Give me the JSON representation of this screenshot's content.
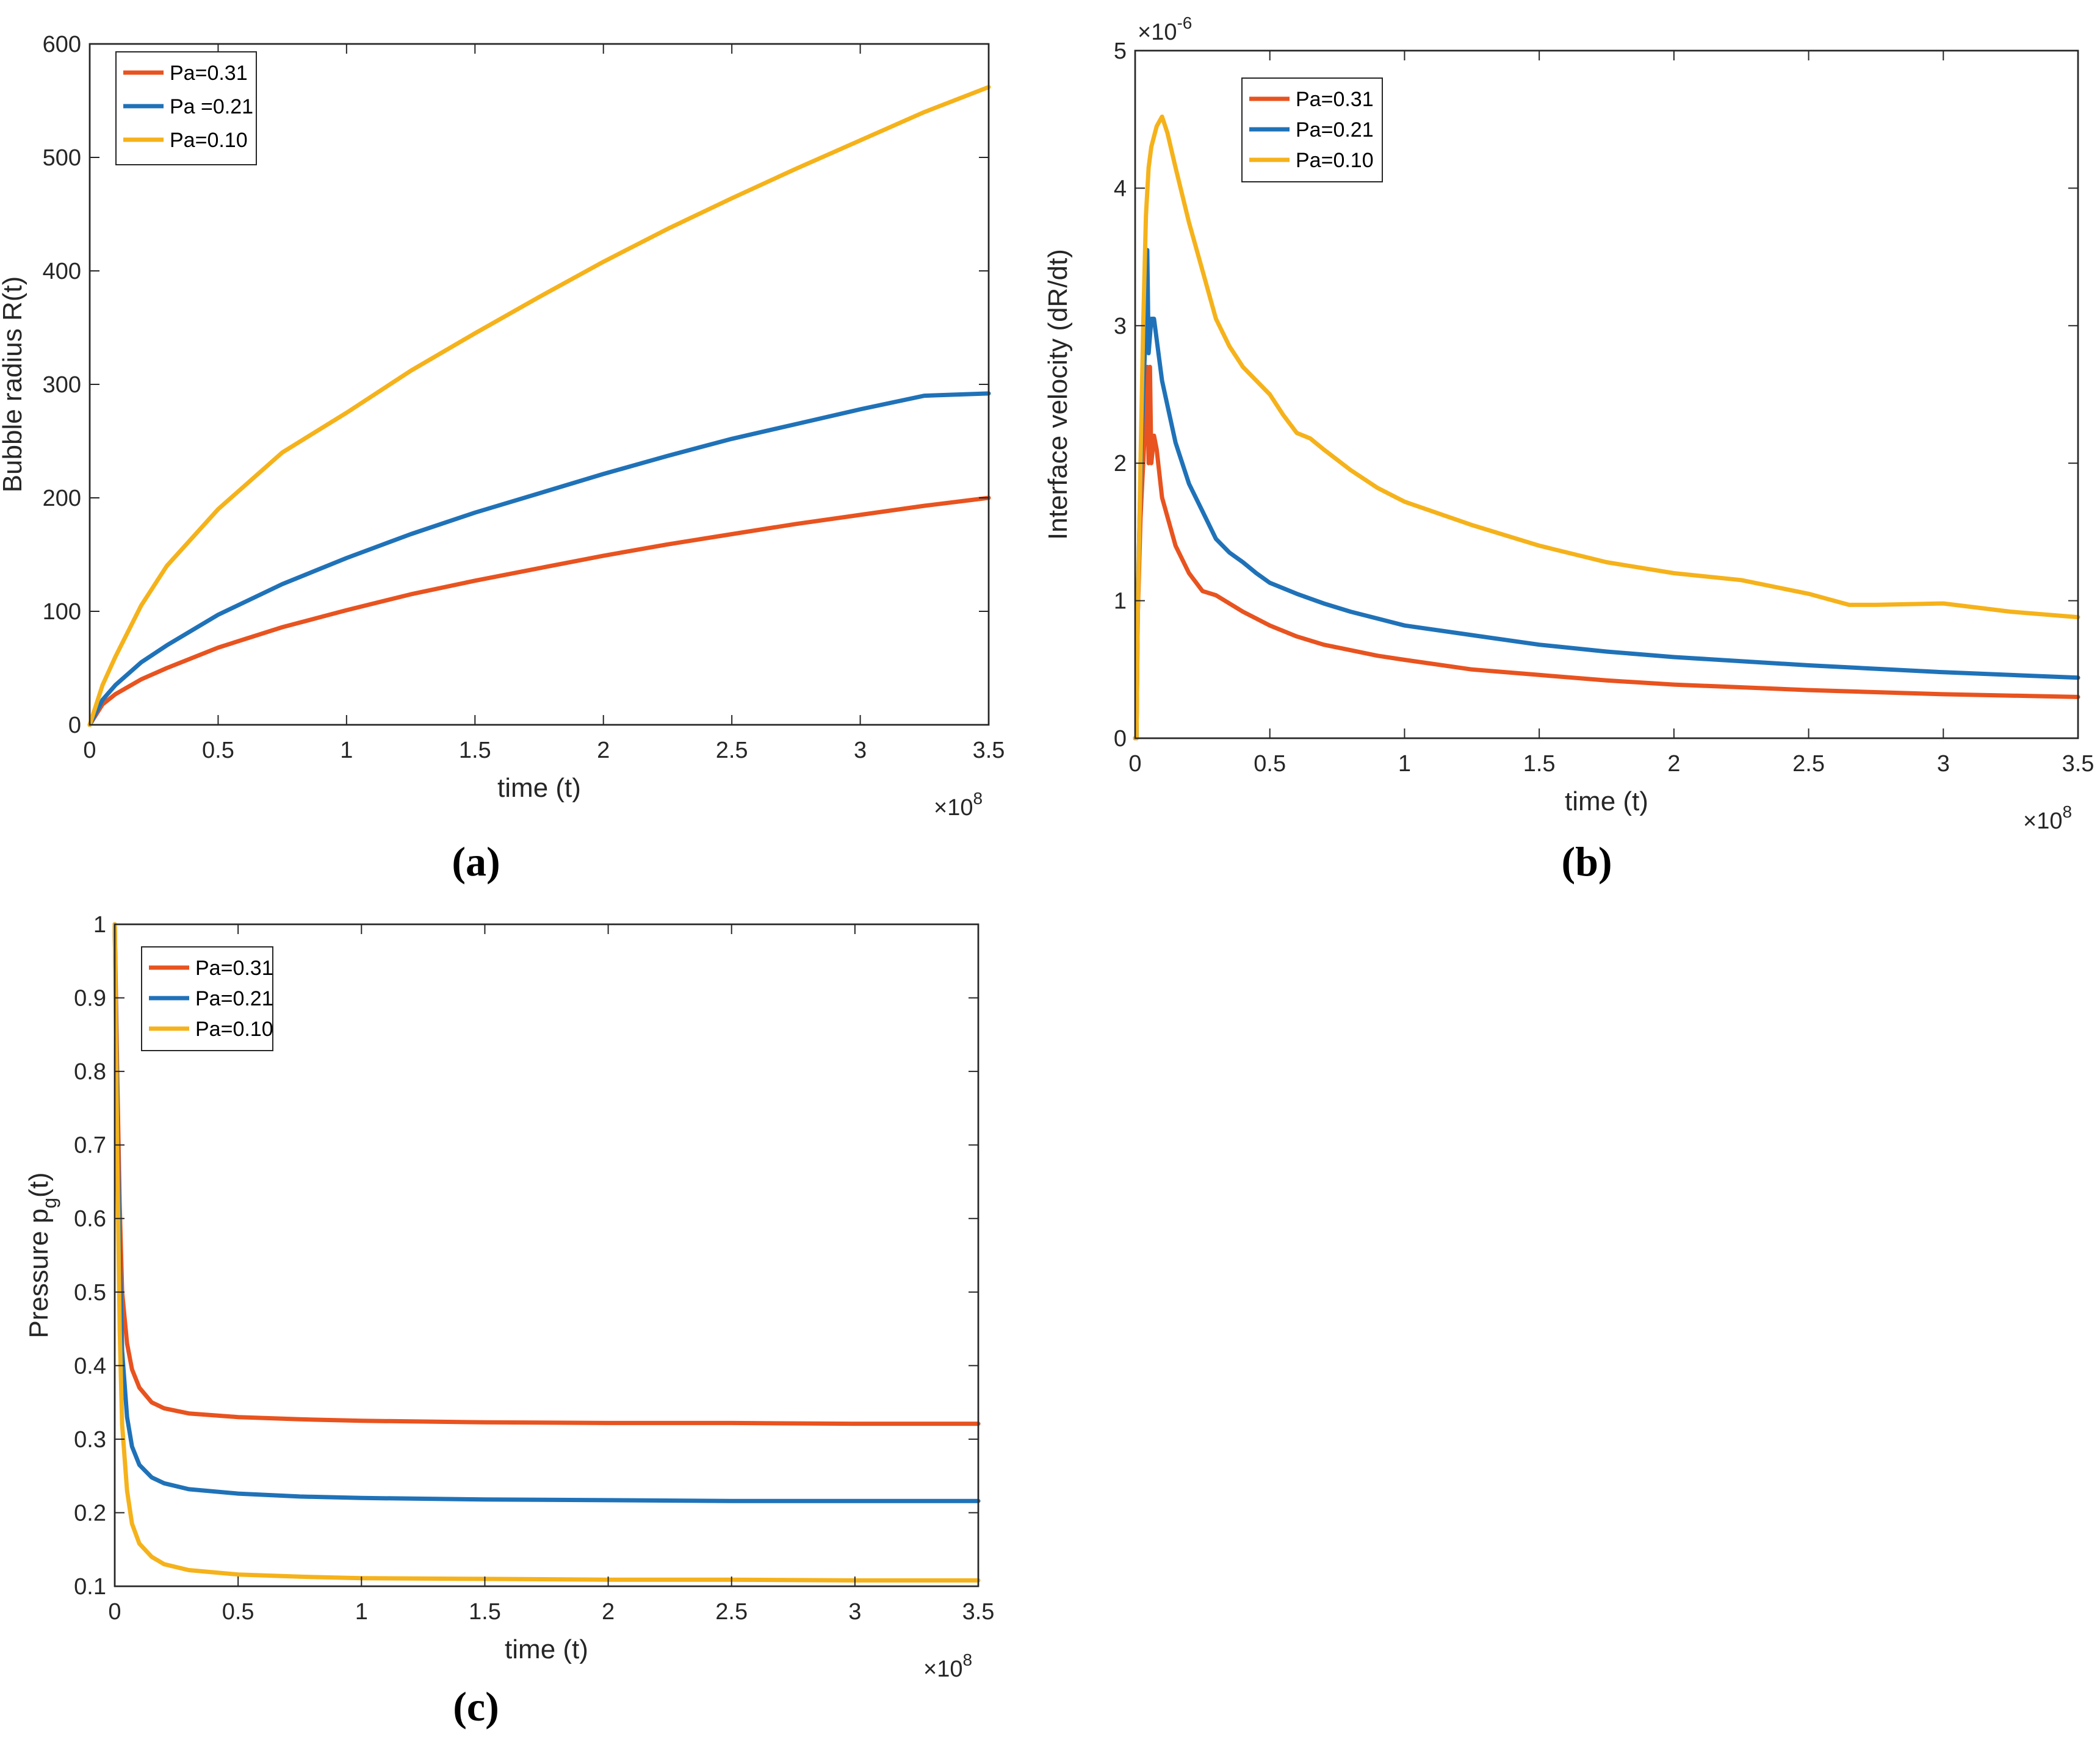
{
  "figure": {
    "colors": {
      "Pa=0.31": "#e8531f",
      "Pa=0.21": "#1f72b8",
      "Pa=0.10": "#f5b21a"
    }
  },
  "chart_data": [
    {
      "id": "a",
      "type": "line",
      "panel_label": "(a)",
      "panel_label_letter": "a",
      "xlabel": "time (t)",
      "ylabel": "Bubble radius R(t)",
      "x_multiplier": "×10",
      "x_multiplier_exp": "8",
      "y_multiplier": null,
      "xlim": [
        0,
        3.5
      ],
      "ylim": [
        0,
        600
      ],
      "xticks": [
        0,
        0.5,
        1,
        1.5,
        2,
        2.5,
        3,
        3.5
      ],
      "xtick_labels": [
        "0",
        "0.5",
        "1",
        "1.5",
        "2",
        "2.5",
        "3",
        "3.5"
      ],
      "yticks": [
        0,
        100,
        200,
        300,
        400,
        500,
        600
      ],
      "ytick_labels": [
        "0",
        "100",
        "200",
        "300",
        "400",
        "500",
        "600"
      ],
      "legend": {
        "position": "top-left",
        "entries": [
          "Pa=0.31",
          "Pa =0.21",
          "Pa=0.10"
        ]
      },
      "series": [
        {
          "name": "Pa=0.31",
          "color": "#e8531f",
          "x": [
            0,
            0.05,
            0.1,
            0.2,
            0.3,
            0.5,
            0.75,
            1.0,
            1.25,
            1.5,
            1.75,
            2.0,
            2.25,
            2.5,
            2.75,
            3.0,
            3.25,
            3.5
          ],
          "y": [
            0,
            18,
            27,
            40,
            50,
            68,
            86,
            101,
            115,
            127,
            138,
            149,
            159,
            168,
            177,
            185,
            193,
            200
          ]
        },
        {
          "name": "Pa =0.21",
          "color": "#1f72b8",
          "x": [
            0,
            0.05,
            0.1,
            0.2,
            0.3,
            0.5,
            0.75,
            1.0,
            1.25,
            1.5,
            1.75,
            2.0,
            2.25,
            2.5,
            2.75,
            3.0,
            3.25,
            3.5
          ],
          "y": [
            0,
            22,
            35,
            55,
            70,
            97,
            124,
            147,
            168,
            187,
            204,
            221,
            237,
            252,
            265,
            278,
            290,
            292
          ]
        },
        {
          "name": "Pa=0.10",
          "color": "#f5b21a",
          "x": [
            0,
            0.05,
            0.1,
            0.2,
            0.3,
            0.5,
            0.75,
            1.0,
            1.25,
            1.5,
            1.75,
            2.0,
            2.25,
            2.5,
            2.75,
            3.0,
            3.25,
            3.5
          ],
          "y": [
            0,
            35,
            60,
            105,
            140,
            190,
            240,
            275,
            312,
            345,
            377,
            408,
            437,
            464,
            490,
            515,
            540,
            562
          ]
        }
      ]
    },
    {
      "id": "b",
      "type": "line",
      "panel_label": "(b)",
      "panel_label_letter": "b",
      "xlabel": "time (t)",
      "ylabel": "Interface velocity (dR/dt)",
      "x_multiplier": "×10",
      "x_multiplier_exp": "8",
      "y_multiplier": "×10",
      "y_multiplier_exp": "-6",
      "xlim": [
        0,
        3.5
      ],
      "ylim": [
        0,
        5
      ],
      "xticks": [
        0,
        0.5,
        1,
        1.5,
        2,
        2.5,
        3,
        3.5
      ],
      "xtick_labels": [
        "0",
        "0.5",
        "1",
        "1.5",
        "2",
        "2.5",
        "3",
        "3.5"
      ],
      "yticks": [
        0,
        1,
        2,
        3,
        4,
        5
      ],
      "ytick_labels": [
        "0",
        "1",
        "2",
        "3",
        "4",
        "5"
      ],
      "legend": {
        "position": "top-left",
        "entries": [
          "Pa=0.31",
          "Pa=0.21",
          "Pa=0.10"
        ]
      },
      "series": [
        {
          "name": "Pa=0.31",
          "color": "#e8531f",
          "x": [
            0,
            0.005,
            0.01,
            0.02,
            0.03,
            0.04,
            0.045,
            0.05,
            0.055,
            0.06,
            0.07,
            0.08,
            0.1,
            0.15,
            0.2,
            0.25,
            0.3,
            0.35,
            0.4,
            0.5,
            0.6,
            0.7,
            0.8,
            0.9,
            1.0,
            1.25,
            1.5,
            1.75,
            2.0,
            2.5,
            3.0,
            3.5
          ],
          "y": [
            0,
            0,
            0.9,
            1.6,
            2.0,
            2.4,
            2.7,
            2.0,
            2.7,
            2.0,
            2.2,
            2.1,
            1.75,
            1.4,
            1.2,
            1.07,
            1.04,
            0.98,
            0.92,
            0.82,
            0.74,
            0.68,
            0.64,
            0.6,
            0.57,
            0.5,
            0.46,
            0.42,
            0.39,
            0.35,
            0.32,
            0.3
          ]
        },
        {
          "name": "Pa=0.21",
          "color": "#1f72b8",
          "x": [
            0,
            0.005,
            0.01,
            0.02,
            0.03,
            0.04,
            0.045,
            0.05,
            0.06,
            0.07,
            0.08,
            0.1,
            0.15,
            0.2,
            0.25,
            0.3,
            0.35,
            0.4,
            0.45,
            0.5,
            0.6,
            0.7,
            0.8,
            0.9,
            1.0,
            1.25,
            1.5,
            1.75,
            2.0,
            2.5,
            3.0,
            3.5
          ],
          "y": [
            0,
            0,
            1.0,
            1.9,
            2.5,
            3.0,
            3.55,
            2.8,
            3.05,
            3.05,
            2.9,
            2.6,
            2.15,
            1.85,
            1.65,
            1.45,
            1.35,
            1.28,
            1.2,
            1.13,
            1.05,
            0.98,
            0.92,
            0.87,
            0.82,
            0.75,
            0.68,
            0.63,
            0.59,
            0.53,
            0.48,
            0.44
          ]
        },
        {
          "name": "Pa=0.10",
          "color": "#f5b21a",
          "x": [
            0,
            0.005,
            0.01,
            0.02,
            0.03,
            0.04,
            0.05,
            0.06,
            0.08,
            0.1,
            0.12,
            0.15,
            0.2,
            0.25,
            0.3,
            0.35,
            0.4,
            0.5,
            0.55,
            0.6,
            0.65,
            0.7,
            0.8,
            0.9,
            1.0,
            1.25,
            1.5,
            1.75,
            2.0,
            2.25,
            2.5,
            2.65,
            2.75,
            3.0,
            3.25,
            3.5
          ],
          "y": [
            0,
            0,
            0.9,
            2.0,
            3.0,
            3.8,
            4.15,
            4.3,
            4.45,
            4.52,
            4.4,
            4.15,
            3.75,
            3.4,
            3.05,
            2.85,
            2.7,
            2.5,
            2.35,
            2.22,
            2.18,
            2.1,
            1.95,
            1.82,
            1.72,
            1.55,
            1.4,
            1.28,
            1.2,
            1.15,
            1.05,
            0.97,
            0.97,
            0.98,
            0.92,
            0.88
          ]
        }
      ]
    },
    {
      "id": "c",
      "type": "line",
      "panel_label": "(c)",
      "panel_label_letter": "c",
      "xlabel": "time (t)",
      "ylabel": "Pressure p",
      "ylabel_sub": "g",
      "ylabel_suffix": "(t)",
      "x_multiplier": "×10",
      "x_multiplier_exp": "8",
      "y_multiplier": null,
      "xlim": [
        0,
        3.5
      ],
      "ylim": [
        0.1,
        1
      ],
      "xticks": [
        0,
        0.5,
        1,
        1.5,
        2,
        2.5,
        3,
        3.5
      ],
      "xtick_labels": [
        "0",
        "0.5",
        "1",
        "1.5",
        "2",
        "2.5",
        "3",
        "3.5"
      ],
      "yticks": [
        0.1,
        0.2,
        0.3,
        0.4,
        0.5,
        0.6,
        0.7,
        0.8,
        0.9,
        1.0
      ],
      "ytick_labels": [
        "0.1",
        "0.2",
        "0.3",
        "0.4",
        "0.5",
        "0.6",
        "0.7",
        "0.8",
        "0.9",
        "1"
      ],
      "legend": {
        "position": "top-left",
        "entries": [
          "Pa=0.31",
          "Pa=0.21",
          "Pa=0.10"
        ]
      },
      "series": [
        {
          "name": "Pa=0.31",
          "color": "#e8531f",
          "x": [
            0,
            0.01,
            0.02,
            0.03,
            0.05,
            0.07,
            0.1,
            0.15,
            0.2,
            0.3,
            0.5,
            0.75,
            1.0,
            1.5,
            2.0,
            2.5,
            3.0,
            3.5
          ],
          "y": [
            1.0,
            0.8,
            0.62,
            0.5,
            0.43,
            0.395,
            0.37,
            0.35,
            0.342,
            0.335,
            0.33,
            0.327,
            0.325,
            0.323,
            0.322,
            0.322,
            0.321,
            0.321
          ]
        },
        {
          "name": "Pa=0.21",
          "color": "#1f72b8",
          "x": [
            0,
            0.01,
            0.02,
            0.03,
            0.05,
            0.07,
            0.1,
            0.15,
            0.2,
            0.3,
            0.5,
            0.75,
            1.0,
            1.5,
            2.0,
            2.5,
            3.0,
            3.5
          ],
          "y": [
            1.0,
            0.75,
            0.55,
            0.42,
            0.33,
            0.29,
            0.265,
            0.248,
            0.24,
            0.232,
            0.226,
            0.222,
            0.22,
            0.218,
            0.217,
            0.216,
            0.216,
            0.216
          ]
        },
        {
          "name": "Pa=0.10",
          "color": "#f5b21a",
          "x": [
            0,
            0.01,
            0.02,
            0.03,
            0.05,
            0.07,
            0.1,
            0.15,
            0.2,
            0.3,
            0.5,
            0.75,
            1.0,
            1.5,
            2.0,
            2.5,
            3.0,
            3.5
          ],
          "y": [
            1.0,
            0.7,
            0.45,
            0.32,
            0.23,
            0.185,
            0.158,
            0.14,
            0.13,
            0.122,
            0.116,
            0.113,
            0.111,
            0.11,
            0.109,
            0.109,
            0.108,
            0.108
          ]
        }
      ]
    }
  ]
}
